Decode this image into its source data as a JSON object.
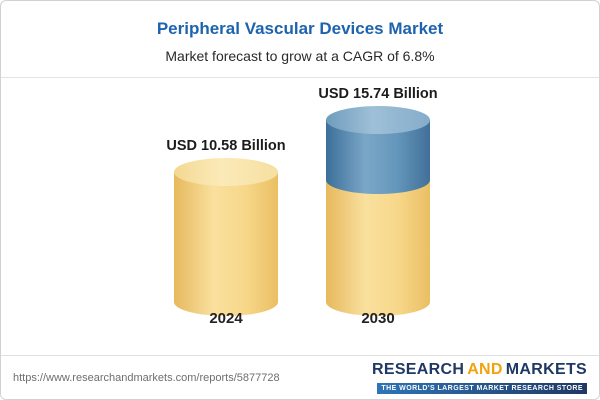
{
  "header": {
    "title": "Peripheral Vascular Devices Market",
    "subtitle": "Market forecast to grow at a CAGR of 6.8%"
  },
  "chart_data": {
    "type": "bar",
    "subtype": "3d-cylinder",
    "title": "Peripheral Vascular Devices Market",
    "subtitle": "Market forecast to grow at a CAGR of 6.8%",
    "categories": [
      "2024",
      "2030"
    ],
    "values": [
      10.58,
      15.74
    ],
    "value_labels": [
      "USD 10.58 Billion",
      "USD 15.74 Billion"
    ],
    "unit": "USD Billion",
    "cagr": "6.8%",
    "legend_position": "none",
    "grid": false,
    "colors": {
      "base_segment": "#f6d88b",
      "growth_segment": "#5585ab",
      "title": "#1e63ae"
    }
  },
  "footer": {
    "url": "https://www.researchandmarkets.com/reports/5877728",
    "logo": {
      "research": "RESEARCH",
      "and": "AND",
      "markets": "MARKETS",
      "tagline": "THE WORLD'S LARGEST MARKET RESEARCH STORE"
    }
  }
}
